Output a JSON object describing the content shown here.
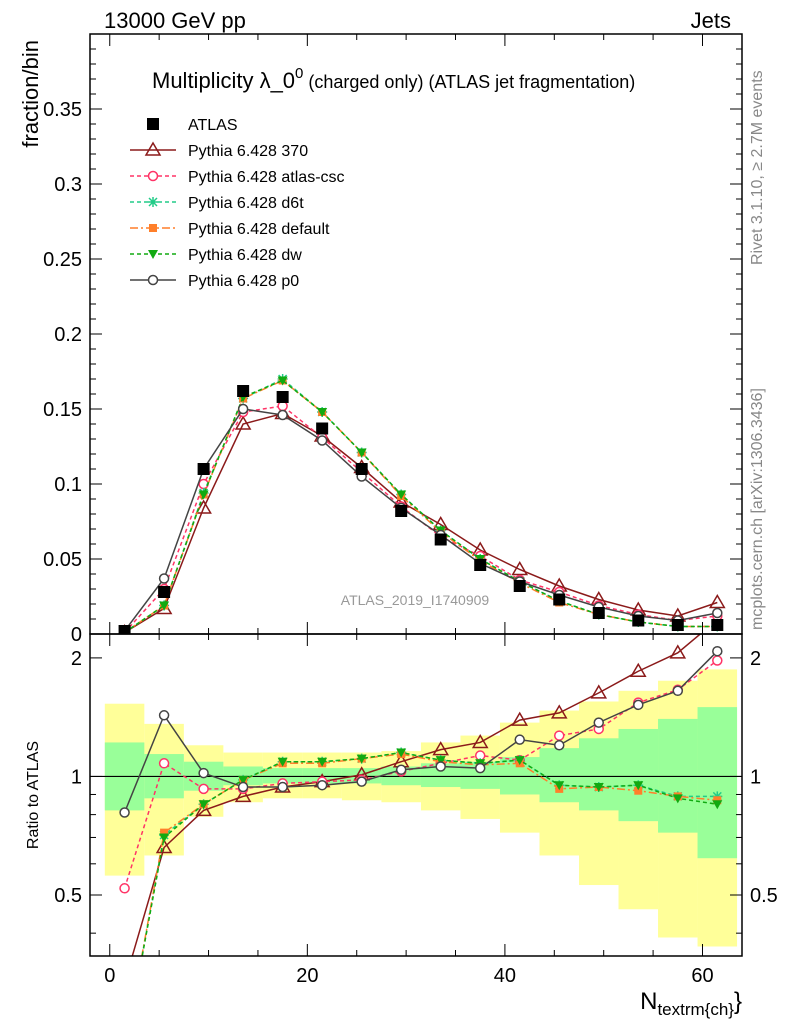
{
  "header": {
    "left": "13000 GeV pp",
    "right": "Jets"
  },
  "side_text": {
    "rivet": "Rivet 3.1.10, ≥ 2.7M events",
    "mcplots": "mcplots.cern.ch [arXiv:1306.3436]"
  },
  "watermark": "ATLAS_2019_I1740909",
  "colors": {
    "atlas": "#000000",
    "p370": "#8b1a1a",
    "atlas_csc": "#ff3366",
    "d6t": "#22cc88",
    "default": "#ff7f2a",
    "dw": "#11aa11",
    "p0": "#444444",
    "band_inner": "#99ff99",
    "band_outer": "#ffff99"
  },
  "chart_data": [
    {
      "type": "line",
      "title": "Multiplicity λ_0",
      "title_sup": "0",
      "title_suffix": " (charged only) (ATLAS jet fragmentation)",
      "ylabel": "fraction/bin",
      "xlabel": "N",
      "xlabel_sub": "textrm{ch}",
      "xlabel_close": "}",
      "xlim": [
        -2,
        64
      ],
      "ylim": [
        0,
        0.4
      ],
      "yticks": [
        0,
        0.05,
        0.1,
        0.15,
        0.2,
        0.25,
        0.3,
        0.35
      ],
      "ytick_labels": [
        "0",
        "0.05",
        "0.1",
        "0.15",
        "0.2",
        "0.25",
        "0.3",
        "0.35"
      ],
      "xticks": [
        0,
        20,
        40,
        60
      ],
      "xtick_labels": [
        "0",
        "20",
        "40",
        "60"
      ],
      "legend_position": "top-left",
      "x": [
        1.5,
        5.5,
        9.5,
        13.5,
        17.5,
        21.5,
        25.5,
        29.5,
        33.5,
        37.5,
        41.5,
        45.5,
        49.5,
        53.5,
        57.5,
        61.5
      ],
      "series": [
        {
          "name": "ATLAS",
          "key": "atlas",
          "marker": "square",
          "dash": "none",
          "values": [
            0.002,
            0.028,
            0.11,
            0.162,
            0.158,
            0.137,
            0.11,
            0.082,
            0.063,
            0.046,
            0.032,
            0.023,
            0.014,
            0.009,
            0.006,
            0.006
          ]
        },
        {
          "name": "Pythia 6.428 370",
          "key": "p370",
          "marker": "triangle",
          "dash": "none",
          "values": [
            0.001,
            0.017,
            0.084,
            0.14,
            0.147,
            0.132,
            0.111,
            0.088,
            0.073,
            0.056,
            0.043,
            0.032,
            0.023,
            0.016,
            0.012,
            0.021
          ]
        },
        {
          "name": "Pythia 6.428 atlas-csc",
          "key": "atlas_csc",
          "marker": "circle",
          "dash": "4,3",
          "values": [
            0.001,
            0.03,
            0.1,
            0.148,
            0.152,
            0.131,
            0.108,
            0.085,
            0.065,
            0.052,
            0.036,
            0.028,
            0.019,
            0.013,
            0.009,
            0.012
          ]
        },
        {
          "name": "Pythia 6.428 d6t",
          "key": "d6t",
          "marker": "star",
          "dash": "4,3",
          "values": [
            0.001,
            0.019,
            0.094,
            0.157,
            0.17,
            0.148,
            0.121,
            0.093,
            0.069,
            0.05,
            0.035,
            0.022,
            0.013,
            0.008,
            0.005,
            0.005
          ]
        },
        {
          "name": "Pythia 6.428 default",
          "key": "default",
          "marker": "square-small",
          "dash": "8,3,2,3",
          "values": [
            0.001,
            0.019,
            0.093,
            0.157,
            0.169,
            0.148,
            0.121,
            0.092,
            0.068,
            0.049,
            0.034,
            0.021,
            0.013,
            0.008,
            0.005,
            0.005
          ]
        },
        {
          "name": "Pythia 6.428 dw",
          "key": "dw",
          "marker": "triangle-down",
          "dash": "4,3",
          "values": [
            0.001,
            0.019,
            0.093,
            0.158,
            0.169,
            0.148,
            0.121,
            0.093,
            0.069,
            0.05,
            0.035,
            0.022,
            0.013,
            0.008,
            0.005,
            0.005
          ]
        },
        {
          "name": "Pythia 6.428 p0",
          "key": "p0",
          "marker": "circle",
          "dash": "none",
          "values": [
            0.002,
            0.037,
            0.11,
            0.15,
            0.146,
            0.129,
            0.105,
            0.084,
            0.066,
            0.047,
            0.035,
            0.026,
            0.018,
            0.012,
            0.009,
            0.014
          ]
        }
      ]
    },
    {
      "type": "line",
      "ylabel": "Ratio to ATLAS",
      "ylim": [
        0.35,
        2.3
      ],
      "log_y": true,
      "yticks": [
        0.5,
        1,
        2
      ],
      "ytick_labels": [
        "0.5",
        "1",
        "2"
      ],
      "x": [
        1.5,
        5.5,
        9.5,
        13.5,
        17.5,
        21.5,
        25.5,
        29.5,
        33.5,
        37.5,
        41.5,
        45.5,
        49.5,
        53.5,
        57.5,
        61.5
      ],
      "band_inner": {
        "low": [
          0.82,
          0.88,
          0.92,
          0.95,
          0.96,
          0.96,
          0.96,
          0.95,
          0.94,
          0.93,
          0.9,
          0.86,
          0.82,
          0.77,
          0.72,
          0.62
        ],
        "high": [
          1.22,
          1.14,
          1.09,
          1.06,
          1.05,
          1.05,
          1.05,
          1.06,
          1.08,
          1.09,
          1.12,
          1.18,
          1.25,
          1.32,
          1.4,
          1.5
        ]
      },
      "band_outer": {
        "low": [
          0.56,
          0.63,
          0.79,
          0.86,
          0.88,
          0.88,
          0.87,
          0.86,
          0.82,
          0.78,
          0.72,
          0.63,
          0.53,
          0.46,
          0.39,
          0.37
        ],
        "high": [
          1.53,
          1.36,
          1.2,
          1.15,
          1.15,
          1.15,
          1.15,
          1.16,
          1.22,
          1.27,
          1.37,
          1.47,
          1.55,
          1.65,
          1.75,
          1.87
        ]
      },
      "series": [
        {
          "key": "p370",
          "values": [
            0.3,
            0.66,
            0.82,
            0.89,
            0.94,
            0.97,
            1.01,
            1.09,
            1.17,
            1.22,
            1.39,
            1.45,
            1.63,
            1.85,
            2.06,
            2.5
          ]
        },
        {
          "key": "atlas_csc",
          "values": [
            0.52,
            1.08,
            0.93,
            0.93,
            0.96,
            0.97,
            0.98,
            1.03,
            1.08,
            1.13,
            1.1,
            1.27,
            1.32,
            1.54,
            1.66,
            1.97
          ]
        },
        {
          "key": "d6t",
          "values": [
            0.2,
            0.71,
            0.85,
            0.98,
            1.09,
            1.09,
            1.11,
            1.15,
            1.1,
            1.08,
            1.1,
            0.95,
            0.94,
            0.95,
            0.89,
            0.89
          ]
        },
        {
          "key": "default",
          "values": [
            0.2,
            0.72,
            0.85,
            0.98,
            1.08,
            1.08,
            1.11,
            1.14,
            1.09,
            1.07,
            1.08,
            0.93,
            0.94,
            0.92,
            0.89,
            0.87
          ]
        },
        {
          "key": "dw",
          "values": [
            0.2,
            0.7,
            0.85,
            0.98,
            1.09,
            1.09,
            1.11,
            1.15,
            1.1,
            1.08,
            1.1,
            0.95,
            0.94,
            0.95,
            0.88,
            0.85
          ]
        },
        {
          "key": "p0",
          "values": [
            0.81,
            1.43,
            1.02,
            0.94,
            0.94,
            0.95,
            0.97,
            1.04,
            1.06,
            1.05,
            1.24,
            1.2,
            1.37,
            1.52,
            1.65,
            2.08
          ]
        }
      ]
    }
  ]
}
